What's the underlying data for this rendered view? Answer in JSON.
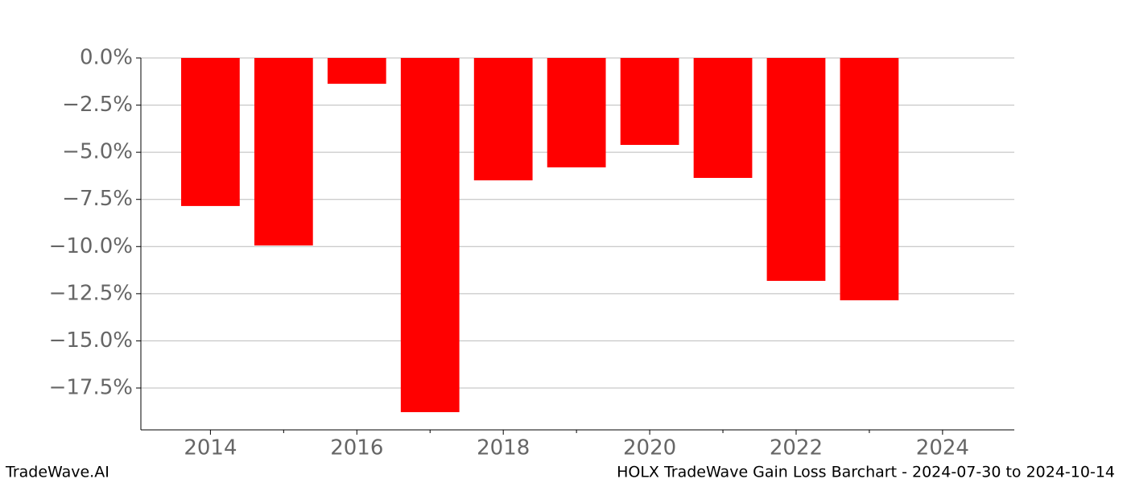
{
  "chart_data": {
    "type": "bar",
    "title": "HOLX TradeWave Gain Loss Barchart - 2024-07-30 to 2024-10-14",
    "brand": "TradeWave.AI",
    "x": [
      2014,
      2015,
      2016,
      2017,
      2018,
      2019,
      2020,
      2021,
      2022,
      2023
    ],
    "values": [
      -7.85,
      -9.94,
      -1.37,
      -18.78,
      -6.49,
      -5.8,
      -4.61,
      -6.36,
      -11.82,
      -12.85
    ],
    "color": "#ff0000",
    "bar_width": 0.8,
    "xlim": [
      2013.05,
      2024.98
    ],
    "xticks": [
      2014,
      2016,
      2018,
      2020,
      2022,
      2024
    ],
    "xminor_ticks": [
      2015,
      2017,
      2019,
      2021,
      2023
    ],
    "ylim": [
      -19.72,
      0
    ],
    "yticks": [
      {
        "value": 0,
        "label": "0.0%"
      },
      {
        "value": -2.5,
        "label": "−2.5%"
      },
      {
        "value": -5,
        "label": "−5.0%"
      },
      {
        "value": -7.5,
        "label": "−7.5%"
      },
      {
        "value": -10,
        "label": "−10.0%"
      },
      {
        "value": -12.5,
        "label": "−12.5%"
      },
      {
        "value": -15,
        "label": "−15.0%"
      },
      {
        "value": -17.5,
        "label": "−17.5%"
      }
    ],
    "grid": true
  }
}
